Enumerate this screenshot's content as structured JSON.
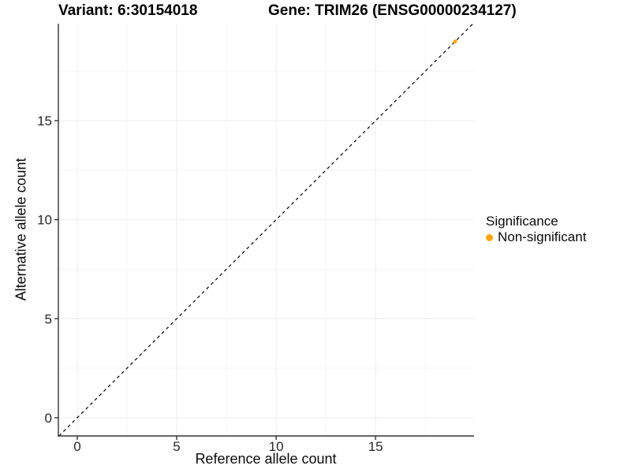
{
  "chart_data": {
    "type": "scatter",
    "title_left": "Variant: 6:30154018",
    "title_right": "Gene: TRIM26 (ENSG00000234127)",
    "xlabel": "Reference allele count",
    "ylabel": "Alternative allele count",
    "xlim": [
      -0.95,
      19.95
    ],
    "ylim": [
      -0.92,
      19.9
    ],
    "xticks": [
      0,
      5,
      10,
      15
    ],
    "yticks": [
      0,
      5,
      10,
      15
    ],
    "xminor": [
      2.5,
      7.5,
      12.5,
      17.5
    ],
    "yminor": [
      2.5,
      7.5,
      12.5,
      17.5
    ],
    "grid": "on",
    "legend_position": "right",
    "series": [
      {
        "name": "Non-significant",
        "color": "#FFA500",
        "marker": "circle",
        "points": [
          {
            "x": 19,
            "y": 19
          }
        ]
      }
    ],
    "reference_line": {
      "kind": "identity",
      "style": "dashed",
      "color": "#000000"
    },
    "legend": {
      "title": "Significance",
      "items": [
        {
          "label": "Non-significant",
          "color": "#FFA500"
        }
      ]
    },
    "style": {
      "axis_line_color": "#333333",
      "tick_color": "#333333",
      "tick_label_color": "#262626",
      "grid_major_color": "#ececec",
      "grid_minor_color": "#f5f5f5",
      "background": "#ffffff",
      "point_radius": 2.5
    }
  }
}
